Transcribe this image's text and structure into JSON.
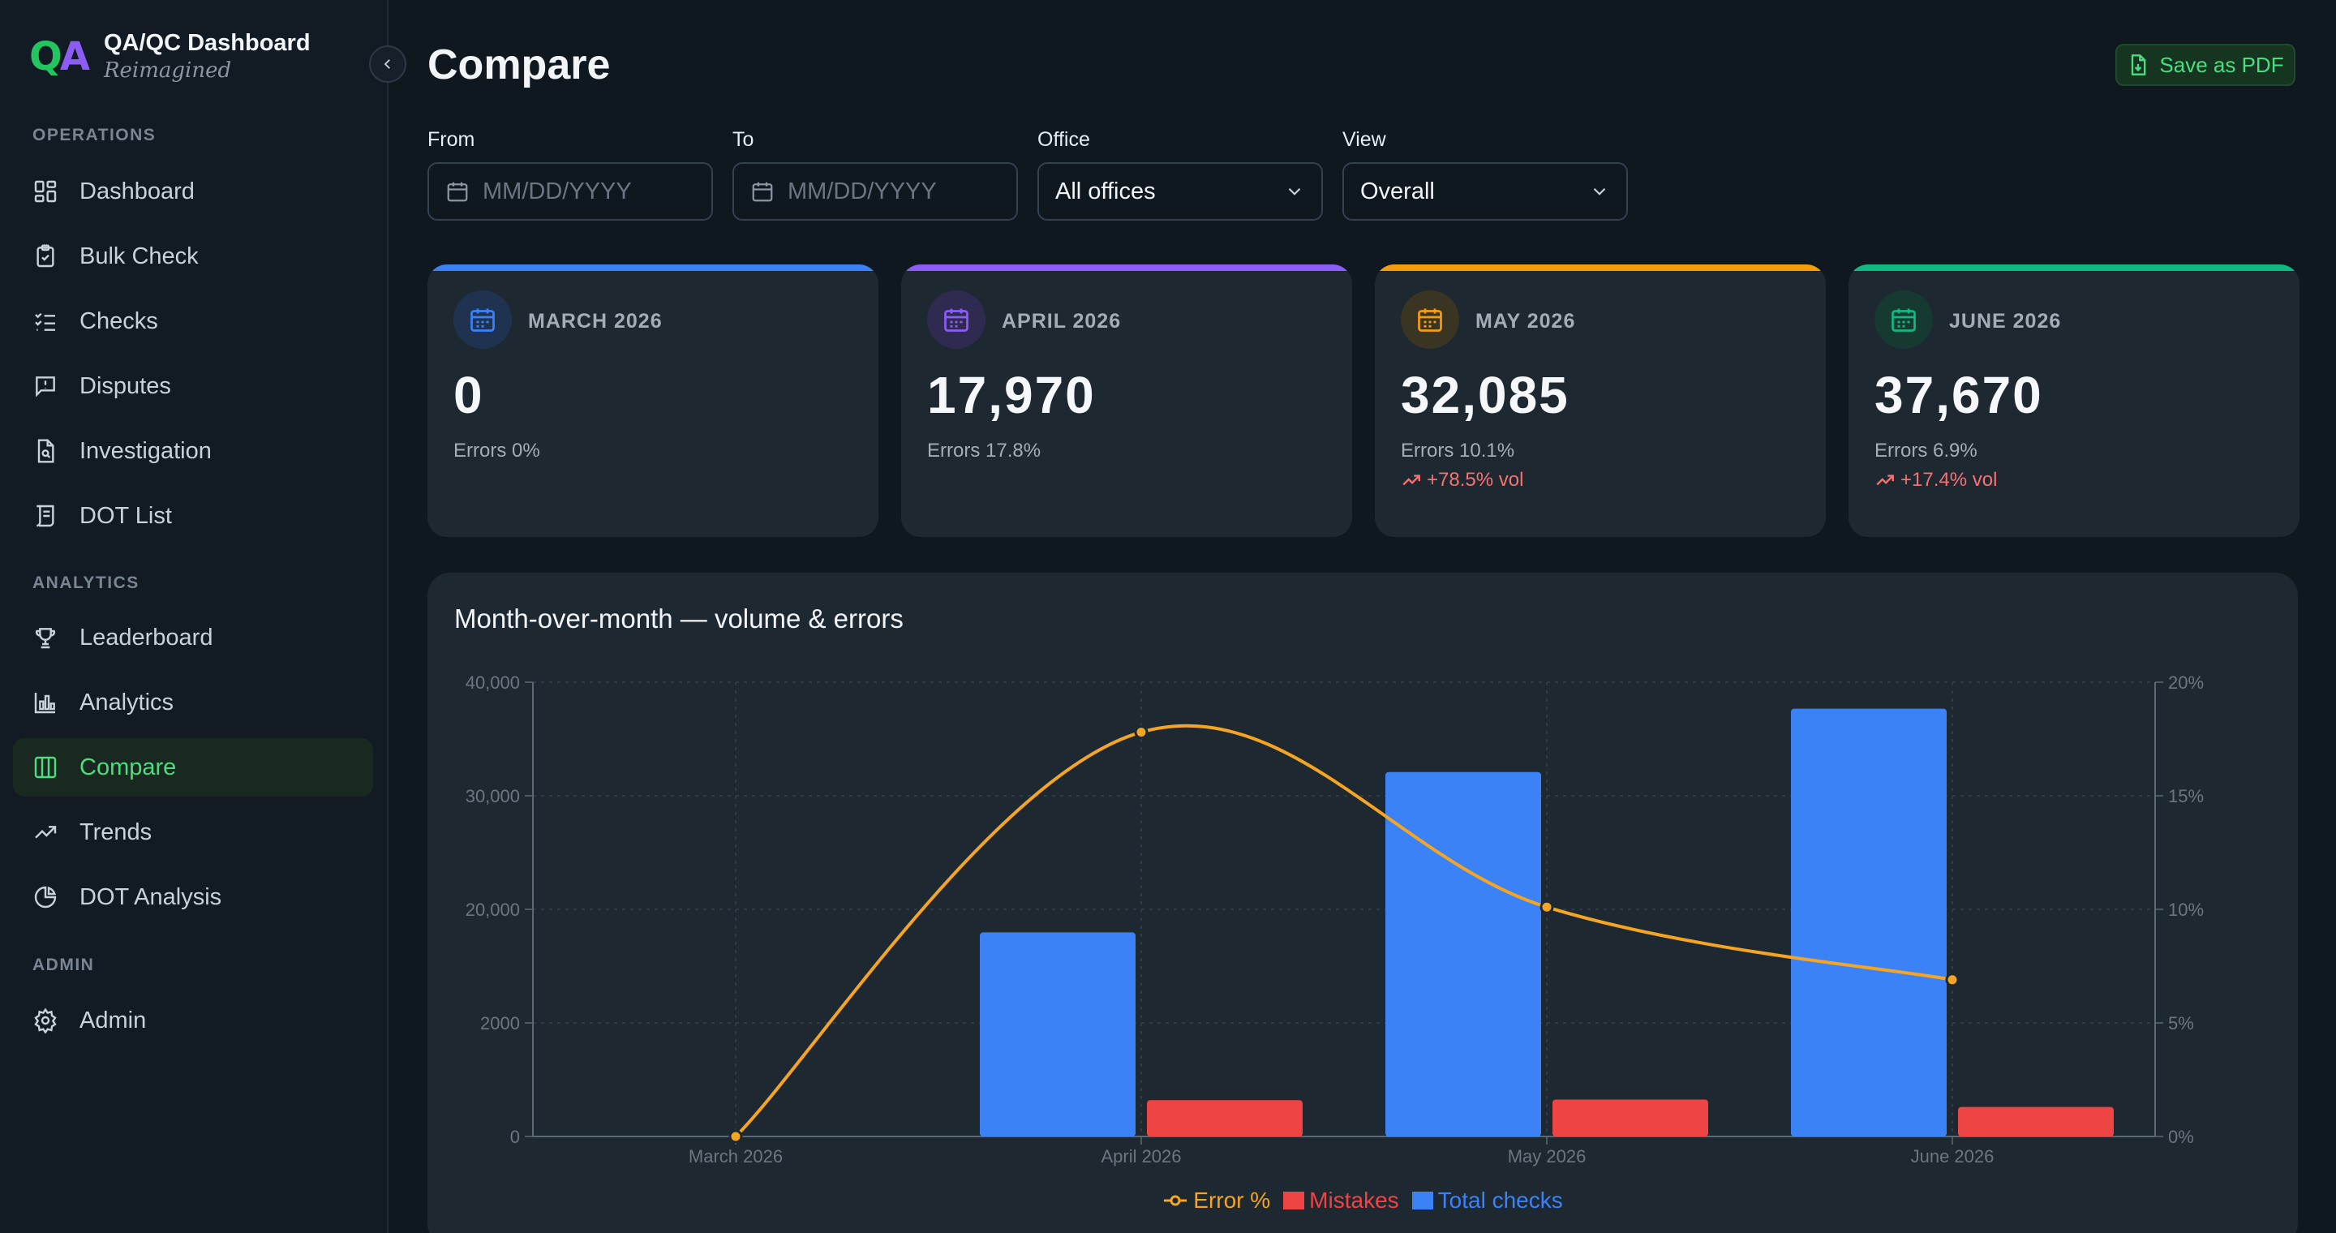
{
  "brand": {
    "logo_q": "Q",
    "logo_a": "A",
    "title": "QA/QC Dashboard",
    "subtitle": "Reimagined"
  },
  "sidebar": {
    "sections": [
      {
        "label": "OPERATIONS"
      },
      {
        "label": "ANALYTICS"
      },
      {
        "label": "ADMIN"
      }
    ],
    "items": [
      {
        "label": "Dashboard",
        "icon": "dashboard-icon"
      },
      {
        "label": "Bulk Check",
        "icon": "clipboard-check-icon"
      },
      {
        "label": "Checks",
        "icon": "list-checks-icon"
      },
      {
        "label": "Disputes",
        "icon": "message-alert-icon"
      },
      {
        "label": "Investigation",
        "icon": "file-search-icon"
      },
      {
        "label": "DOT List",
        "icon": "scroll-icon"
      },
      {
        "label": "Leaderboard",
        "icon": "trophy-icon"
      },
      {
        "label": "Analytics",
        "icon": "bar-chart-icon"
      },
      {
        "label": "Compare",
        "icon": "columns-icon",
        "active": true
      },
      {
        "label": "Trends",
        "icon": "trending-up-icon"
      },
      {
        "label": "DOT Analysis",
        "icon": "pie-chart-icon"
      },
      {
        "label": "Admin",
        "icon": "gear-icon"
      }
    ]
  },
  "header": {
    "title": "Compare",
    "save_pdf": "Save as PDF"
  },
  "filters": {
    "from": {
      "label": "From",
      "placeholder": "MM/DD/YYYY"
    },
    "to": {
      "label": "To",
      "placeholder": "MM/DD/YYYY"
    },
    "office": {
      "label": "Office",
      "value": "All offices"
    },
    "view": {
      "label": "View",
      "value": "Overall"
    }
  },
  "cards": [
    {
      "month": "MARCH 2026",
      "value": "0",
      "errors": "Errors 0%",
      "delta": "",
      "color": "#3b82f6",
      "icon_bg": "#1f3350"
    },
    {
      "month": "APRIL 2026",
      "value": "17,970",
      "errors": "Errors 17.8%",
      "delta": "",
      "color": "#8b5cf6",
      "icon_bg": "#2f2a4f"
    },
    {
      "month": "MAY 2026",
      "value": "32,085",
      "errors": "Errors 10.1%",
      "delta": "+78.5% vol",
      "color": "#f59e0b",
      "icon_bg": "#3a3423"
    },
    {
      "month": "JUNE 2026",
      "value": "37,670",
      "errors": "Errors 6.9%",
      "delta": "+17.4% vol",
      "color": "#10b981",
      "icon_bg": "#163a32"
    }
  ],
  "chart_data": {
    "type": "bar",
    "title": "Month-over-month — volume & errors",
    "categories": [
      "March 2026",
      "April 2026",
      "May 2026",
      "June 2026"
    ],
    "y_left": {
      "ticks": [
        "0",
        "2000",
        "20,000",
        "30,000",
        "40,000"
      ],
      "range": [
        0,
        40000
      ]
    },
    "y_right": {
      "ticks": [
        "0%",
        "5%",
        "10%",
        "15%",
        "20%"
      ],
      "range": [
        0,
        20
      ]
    },
    "series": [
      {
        "name": "Total checks",
        "kind": "bar",
        "axis": "left",
        "values": [
          0,
          17970,
          32085,
          37670
        ],
        "color": "#3b82f6"
      },
      {
        "name": "Mistakes",
        "kind": "bar",
        "axis": "left",
        "values": [
          0,
          3200,
          3250,
          2600
        ],
        "color": "#ef4444"
      },
      {
        "name": "Error %",
        "kind": "line",
        "axis": "right",
        "values": [
          0,
          17.8,
          10.1,
          6.9
        ],
        "color": "#f5a524"
      }
    ],
    "grid": true,
    "legend": "bottom-center",
    "legend_order": [
      "Error %",
      "Mistakes",
      "Total checks"
    ]
  }
}
